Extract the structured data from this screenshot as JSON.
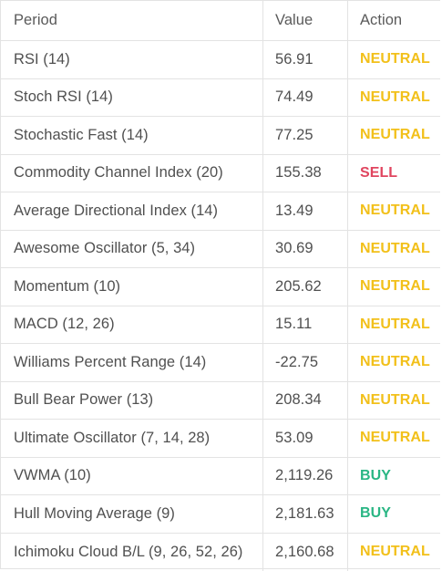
{
  "headers": {
    "period": "Period",
    "value": "Value",
    "action": "Action"
  },
  "colors": {
    "neutral": "#f2c01a",
    "sell": "#e0455f",
    "buy": "#2ab684"
  },
  "rows": [
    {
      "period": "RSI (14)",
      "value": "56.91",
      "action": "NEUTRAL"
    },
    {
      "period": "Stoch RSI (14)",
      "value": "74.49",
      "action": "NEUTRAL"
    },
    {
      "period": "Stochastic Fast (14)",
      "value": "77.25",
      "action": "NEUTRAL"
    },
    {
      "period": "Commodity Channel Index (20)",
      "value": "155.38",
      "action": "SELL"
    },
    {
      "period": "Average Directional Index (14)",
      "value": "13.49",
      "action": "NEUTRAL"
    },
    {
      "period": "Awesome Oscillator (5, 34)",
      "value": "30.69",
      "action": "NEUTRAL"
    },
    {
      "period": "Momentum (10)",
      "value": "205.62",
      "action": "NEUTRAL"
    },
    {
      "period": "MACD (12, 26)",
      "value": "15.11",
      "action": "NEUTRAL"
    },
    {
      "period": "Williams Percent Range (14)",
      "value": "-22.75",
      "action": "NEUTRAL"
    },
    {
      "period": "Bull Bear Power (13)",
      "value": "208.34",
      "action": "NEUTRAL"
    },
    {
      "period": "Ultimate Oscillator (7, 14, 28)",
      "value": "53.09",
      "action": "NEUTRAL"
    },
    {
      "period": "VWMA (10)",
      "value": "2,119.26",
      "action": "BUY"
    },
    {
      "period": "Hull Moving Average (9)",
      "value": "2,181.63",
      "action": "BUY"
    },
    {
      "period": "Ichimoku Cloud B/L (9, 26, 52, 26)",
      "value": "2,160.68",
      "action": "NEUTRAL"
    }
  ]
}
